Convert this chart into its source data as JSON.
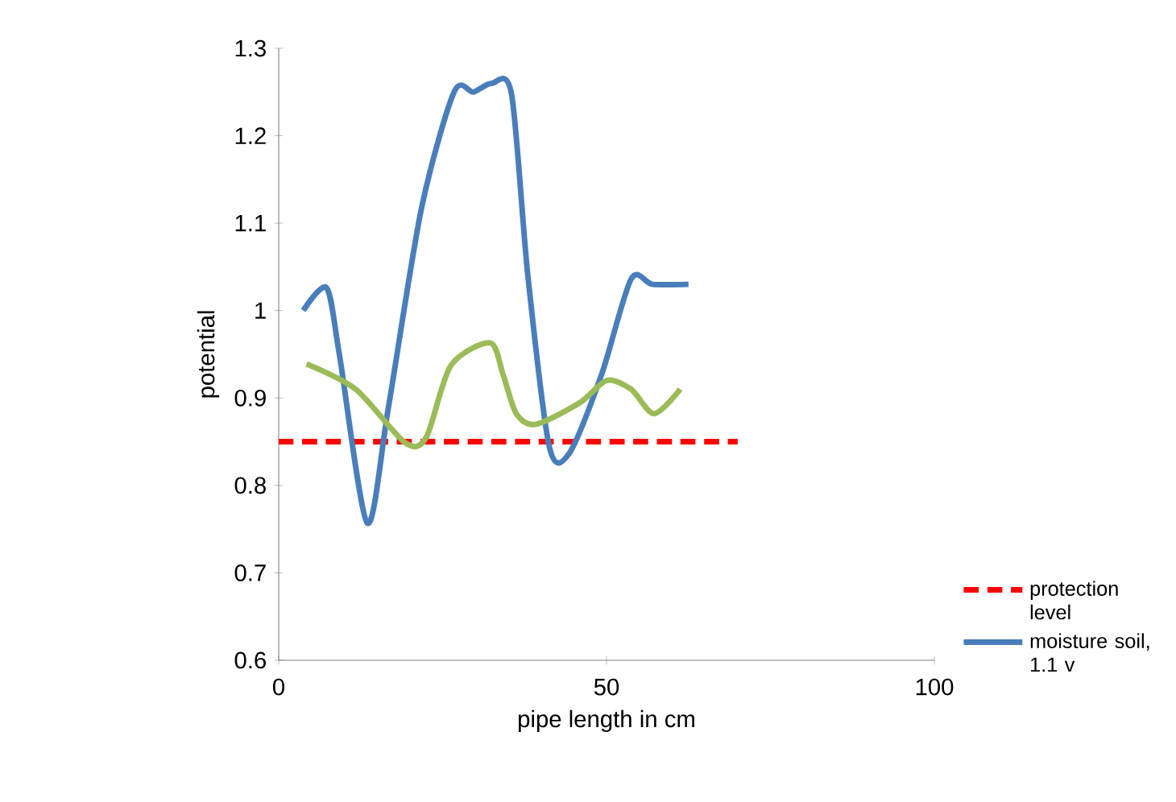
{
  "chart_data": {
    "type": "line",
    "xlabel": "pipe length in cm",
    "ylabel": "potential",
    "xlim": [
      0,
      100
    ],
    "xticks": [
      0,
      50,
      100
    ],
    "ylim": [
      0.6,
      1.3
    ],
    "yticks": [
      0.6,
      0.7,
      0.8,
      0.9,
      1,
      1.1,
      1.2,
      1.3
    ],
    "grid": false,
    "legend": "right",
    "series": [
      {
        "name": "protection level",
        "color": "#ff0000",
        "line_style": "dashed",
        "x": [
          0,
          70
        ],
        "values": [
          0.85,
          0.85
        ]
      },
      {
        "name": "moisture soil, 1.1 v",
        "color": "#4a7ebb",
        "x": [
          3.75,
          7.3,
          9.25,
          13.5,
          16.75,
          21.75,
          26.75,
          29.7,
          32.5,
          35.5,
          38,
          41.25,
          44.25,
          49.25,
          53.75,
          57,
          62.5
        ],
        "values": [
          1.0,
          1.026,
          0.95,
          0.757,
          0.89,
          1.116,
          1.25,
          1.25,
          1.26,
          1.248,
          1.04,
          0.845,
          0.836,
          0.927,
          1.036,
          1.03,
          1.03
        ]
      },
      {
        "color": "#9bbb59",
        "x": [
          4.25,
          11.75,
          19.25,
          22.5,
          26.25,
          32.25,
          34.25,
          36.25,
          39.25,
          46,
          50,
          53.75,
          57.25,
          61.25
        ],
        "values": [
          0.939,
          0.91,
          0.849,
          0.855,
          0.937,
          0.963,
          0.926,
          0.882,
          0.87,
          0.895,
          0.92,
          0.91,
          0.882,
          0.91
        ]
      }
    ]
  }
}
